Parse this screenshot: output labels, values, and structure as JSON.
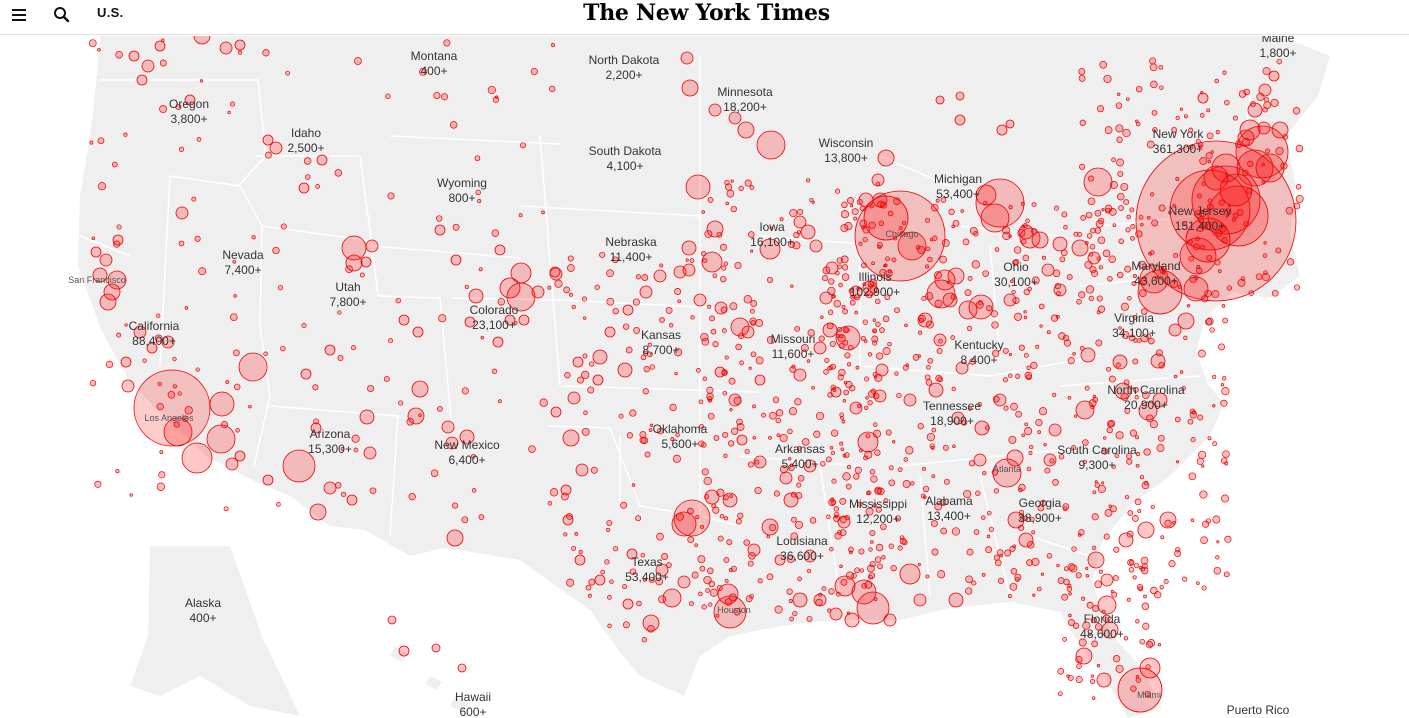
{
  "header": {
    "menu_icon": "hamburger-menu-icon",
    "search_icon": "search-icon",
    "section": "U.S.",
    "masthead": "The New York Times"
  },
  "colors": {
    "land": "#efefef",
    "border": "#ffffff",
    "bubble_fill": "#ff0000",
    "bubble_stroke": "#ee0000"
  },
  "states": [
    {
      "name": "Maine",
      "count": "1,800+"
    },
    {
      "name": "Montana",
      "count": "400+"
    },
    {
      "name": "North Dakota",
      "count": "2,200+"
    },
    {
      "name": "Minnesota",
      "count": "18,200+"
    },
    {
      "name": "Oregon",
      "count": "3,800+"
    },
    {
      "name": "Idaho",
      "count": "2,500+"
    },
    {
      "name": "New York",
      "count": "361,300+"
    },
    {
      "name": "Wisconsin",
      "count": "13,800+"
    },
    {
      "name": "South Dakota",
      "count": "4,100+"
    },
    {
      "name": "Wyoming",
      "count": "800+"
    },
    {
      "name": "Michigan",
      "count": "53,400+"
    },
    {
      "name": "New Jersey",
      "count": "151,400+"
    },
    {
      "name": "Iowa",
      "count": "16,100+"
    },
    {
      "name": "Nebraska",
      "count": "11,400+"
    },
    {
      "name": "Nevada",
      "count": "7,400+"
    },
    {
      "name": "Utah",
      "count": "7,800+"
    },
    {
      "name": "Ohio",
      "count": "30,100+"
    },
    {
      "name": "Maryland",
      "count": "43,600+"
    },
    {
      "name": "Illinois",
      "count": "102,900+"
    },
    {
      "name": "Colorado",
      "count": "23,100+"
    },
    {
      "name": "California",
      "count": "88,400+"
    },
    {
      "name": "Kansas",
      "count": "8,700+"
    },
    {
      "name": "Missouri",
      "count": "11,600+"
    },
    {
      "name": "Virginia",
      "count": "34,100+"
    },
    {
      "name": "Kentucky",
      "count": "8,400+"
    },
    {
      "name": "North Carolina",
      "count": "20,900+"
    },
    {
      "name": "Tennessee",
      "count": "18,900+"
    },
    {
      "name": "Arizona",
      "count": "15,300+"
    },
    {
      "name": "Oklahoma",
      "count": "5,600+"
    },
    {
      "name": "New Mexico",
      "count": "6,400+"
    },
    {
      "name": "Arkansas",
      "count": "5,400+"
    },
    {
      "name": "South Carolina",
      "count": "9,300+"
    },
    {
      "name": "Mississippi",
      "count": "12,200+"
    },
    {
      "name": "Alabama",
      "count": "13,400+"
    },
    {
      "name": "Georgia",
      "count": "38,900+"
    },
    {
      "name": "Louisiana",
      "count": "36,600+"
    },
    {
      "name": "Texas",
      "count": "53,400+"
    },
    {
      "name": "Alaska",
      "count": "400+"
    },
    {
      "name": "Florida",
      "count": "48,600+"
    },
    {
      "name": "Hawaii",
      "count": "600+"
    },
    {
      "name": "Puerto Rico",
      "count": ""
    }
  ],
  "cities": [
    "San Francisco",
    "Los Angeles",
    "Chicago",
    "Houston",
    "Atlanta",
    "Miami"
  ]
}
